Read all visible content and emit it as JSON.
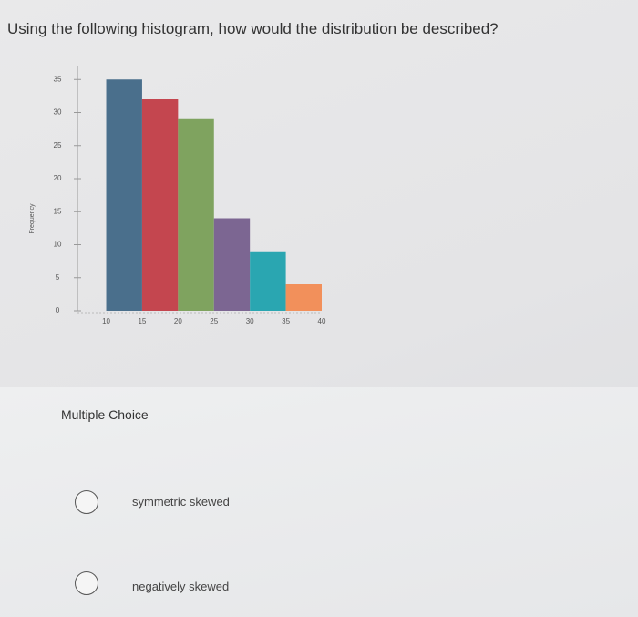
{
  "question": "Using the following histogram, how would the distribution be described?",
  "chart_data": {
    "type": "histogram",
    "ylabel": "Frequency",
    "bins": [
      10,
      15,
      20,
      25,
      30,
      35,
      40
    ],
    "values": [
      35,
      32,
      29,
      14,
      9,
      4
    ],
    "colors": [
      "#4a6f8c",
      "#c4464f",
      "#7fa35f",
      "#7c6692",
      "#2aa6b1",
      "#f2905b"
    ],
    "xlim": [
      6,
      40
    ],
    "ylim": [
      0,
      36
    ],
    "xticks": [
      10,
      15,
      20,
      25,
      30,
      35,
      40
    ],
    "yticks": [
      0,
      5,
      10,
      15,
      20,
      25,
      30,
      35
    ]
  },
  "multiple_choice": {
    "label": "Multiple Choice",
    "options": [
      "symmetric skewed",
      "negatively skewed"
    ]
  }
}
